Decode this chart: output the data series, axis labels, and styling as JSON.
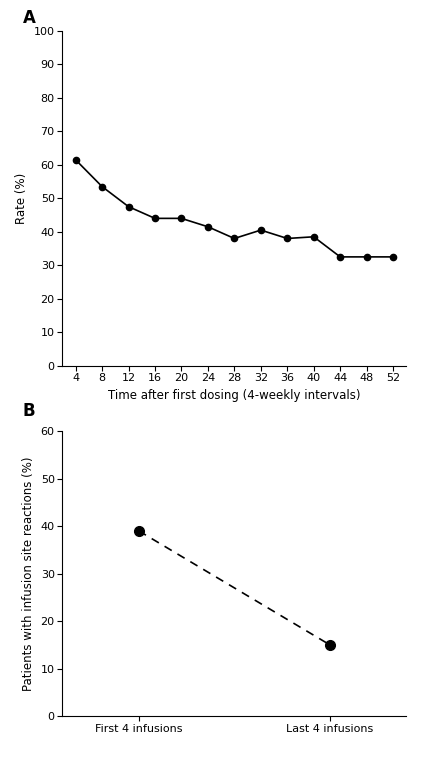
{
  "panel_A": {
    "x": [
      4,
      8,
      12,
      16,
      20,
      24,
      28,
      32,
      36,
      40,
      44,
      48,
      52
    ],
    "y": [
      61.5,
      53.5,
      47.5,
      44.0,
      44.0,
      41.5,
      38.0,
      40.5,
      38.0,
      38.5,
      32.5,
      32.5,
      32.5
    ],
    "xlabel": "Time after first dosing (4-weekly intervals)",
    "ylabel": "Rate (%)",
    "ylim": [
      0,
      100
    ],
    "xticks": [
      4,
      8,
      12,
      16,
      20,
      24,
      28,
      32,
      36,
      40,
      44,
      48,
      52
    ],
    "yticks": [
      0,
      10,
      20,
      30,
      40,
      50,
      60,
      70,
      80,
      90,
      100
    ],
    "label": "A"
  },
  "panel_B": {
    "x": [
      0,
      1
    ],
    "y": [
      39.0,
      15.0
    ],
    "xticklabels": [
      "First 4 infusions",
      "Last 4 infusions"
    ],
    "ylabel": "Patients with infusion site reactions (%)",
    "ylim": [
      0,
      60
    ],
    "yticks": [
      0,
      10,
      20,
      30,
      40,
      50,
      60
    ],
    "label": "B"
  },
  "line_color": "#000000",
  "marker": "o",
  "markersize": 4.5,
  "markersize_B": 7,
  "linewidth": 1.2,
  "background_color": "#ffffff",
  "tick_fontsize": 8,
  "label_fontsize": 8.5,
  "panel_label_fontsize": 12
}
